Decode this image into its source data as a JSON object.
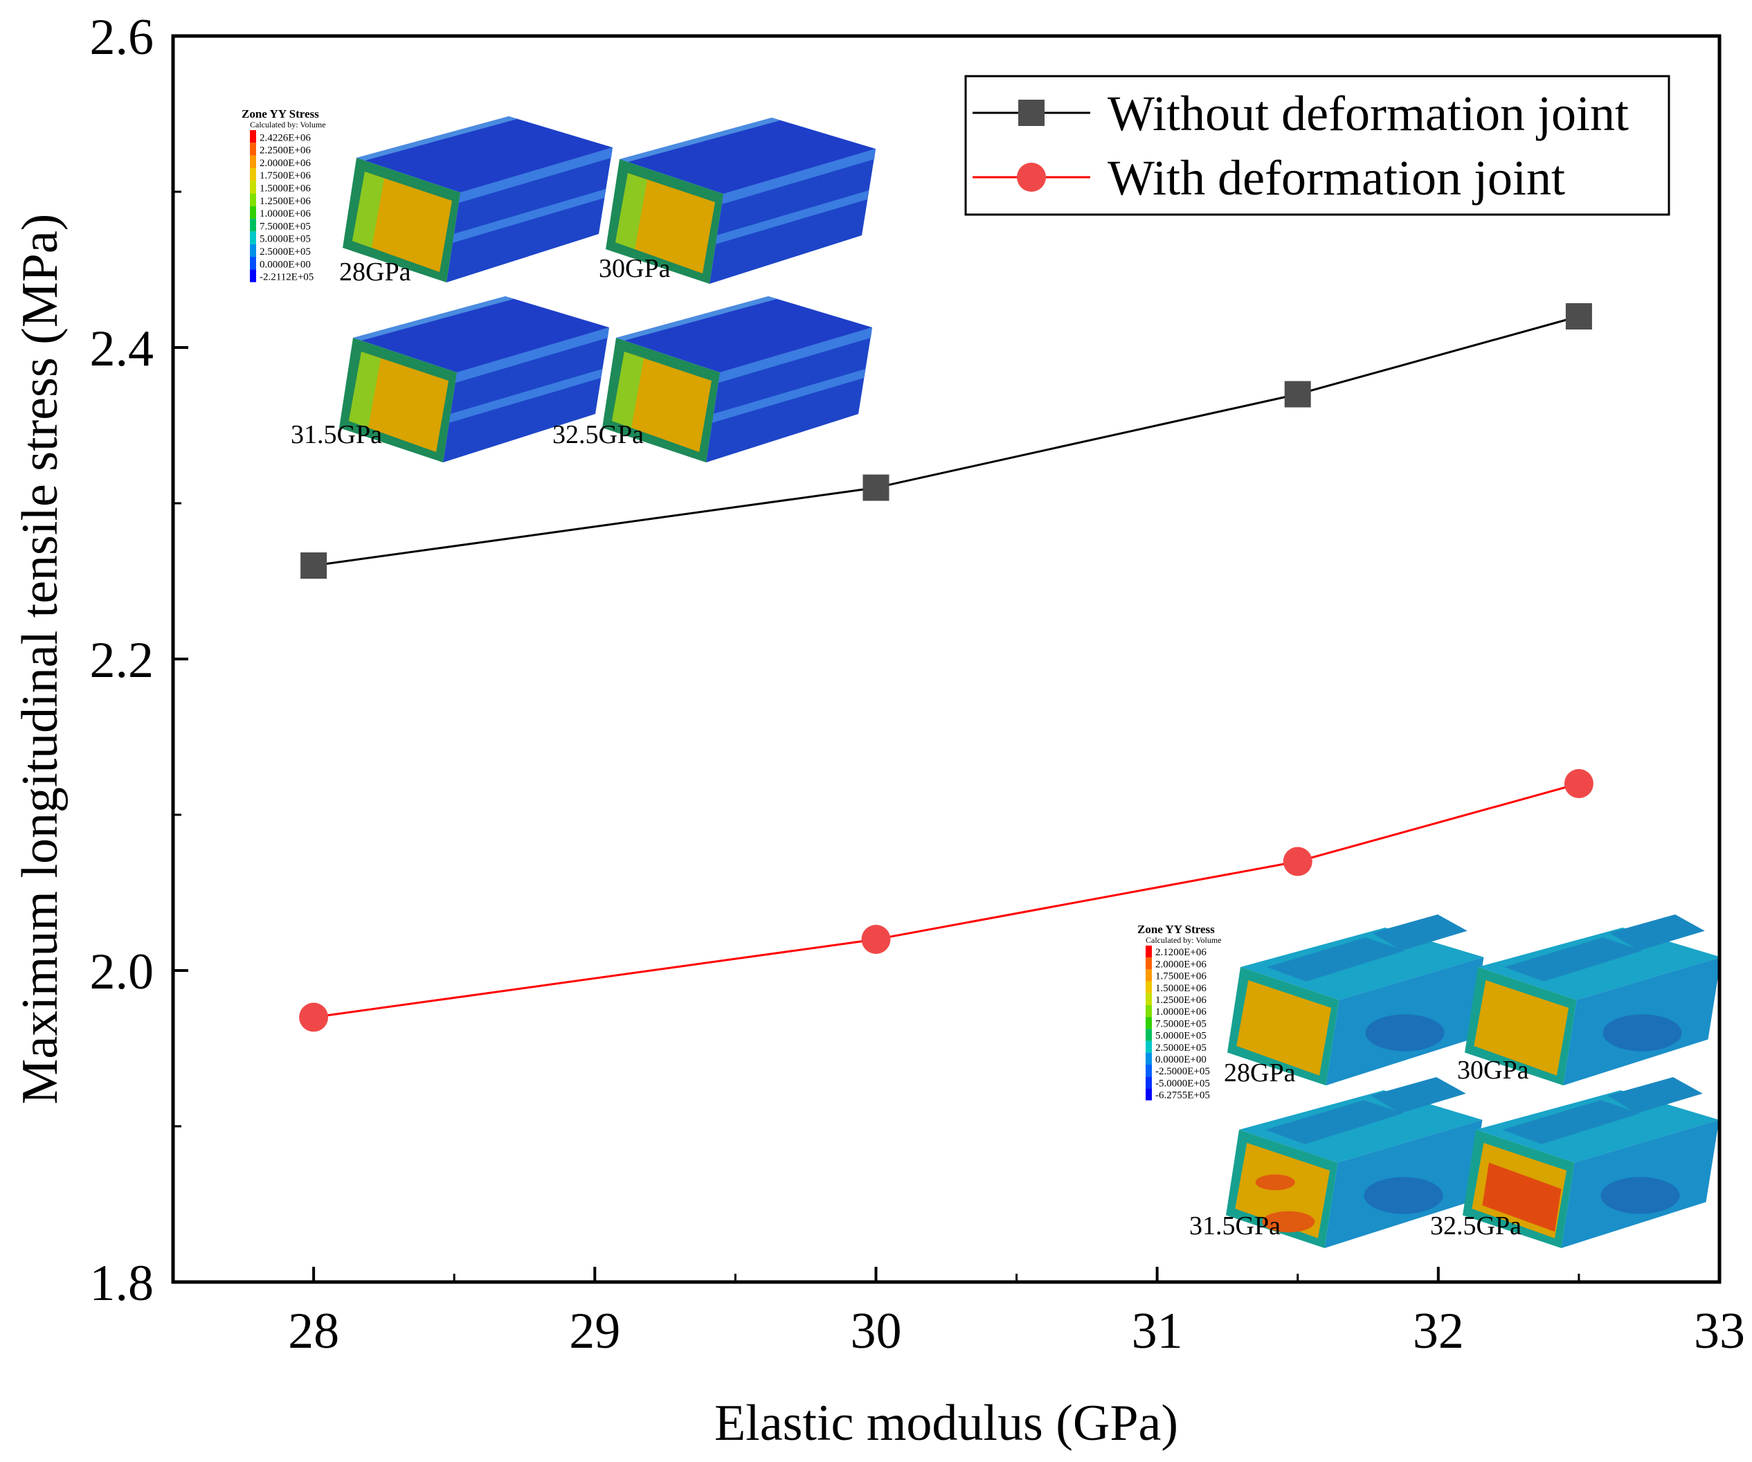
{
  "chart_data": {
    "type": "line",
    "title": "",
    "xlabel": "Elastic modulus (GPa)",
    "ylabel": "Maximum longitudinal tensile stress (MPa)",
    "xlim": [
      27.5,
      33
    ],
    "ylim": [
      1.8,
      2.6
    ],
    "x_ticks": [
      "28",
      "29",
      "30",
      "31",
      "32",
      "33"
    ],
    "y_ticks": [
      "1.8",
      "2.0",
      "2.2",
      "2.4",
      "2.6"
    ],
    "x": [
      28,
      30,
      31.5,
      32.5
    ],
    "series": [
      {
        "name": "Without deformation joint",
        "marker": "square",
        "color": "#4d4d4d",
        "line_color": "#000000",
        "values": [
          2.26,
          2.31,
          2.37,
          2.42
        ]
      },
      {
        "name": "With deformation joint",
        "marker": "circle",
        "color": "#f04848",
        "line_color": "#ff0000",
        "values": [
          1.97,
          2.02,
          2.07,
          2.12
        ]
      }
    ],
    "legend_position": "top-right",
    "grid": false
  },
  "insets": {
    "top": {
      "colorbar_title": "Zone YY Stress",
      "colorbar_subtitle": "Calculated by: Volume",
      "colorbar_values": [
        "2.4226E+06",
        "2.2500E+06",
        "2.0000E+06",
        "1.7500E+06",
        "1.5000E+06",
        "1.2500E+06",
        "1.0000E+06",
        "7.5000E+05",
        "5.0000E+05",
        "2.5000E+05",
        "0.0000E+00",
        "-2.2112E+05"
      ],
      "colorbar_colors": [
        "#ff0000",
        "#ff6000",
        "#ff9a00",
        "#f0c800",
        "#c8e000",
        "#80e000",
        "#30d000",
        "#00c060",
        "#00c8c8",
        "#0090e8",
        "#0050ff",
        "#0000ff"
      ],
      "labels": [
        "28GPa",
        "30GPa",
        "31.5GPa",
        "32.5GPa"
      ]
    },
    "bottom": {
      "colorbar_title": "Zone YY Stress",
      "colorbar_subtitle": "Calculated by: Volume",
      "colorbar_values": [
        "2.1200E+06",
        "2.0000E+06",
        "1.7500E+06",
        "1.5000E+06",
        "1.2500E+06",
        "1.0000E+06",
        "7.5000E+05",
        "5.0000E+05",
        "2.5000E+05",
        "0.0000E+00",
        "-2.5000E+05",
        "-5.0000E+05",
        "-6.2755E+05"
      ],
      "colorbar_colors": [
        "#ff0000",
        "#ff6000",
        "#ff9a00",
        "#f0c800",
        "#c8e000",
        "#80e000",
        "#30d000",
        "#00c060",
        "#00c8c8",
        "#0090e8",
        "#0060ff",
        "#0030ff",
        "#0000ff"
      ],
      "labels": [
        "28GPa",
        "30GPa",
        "31.5GPa",
        "32.5GPa"
      ]
    }
  }
}
